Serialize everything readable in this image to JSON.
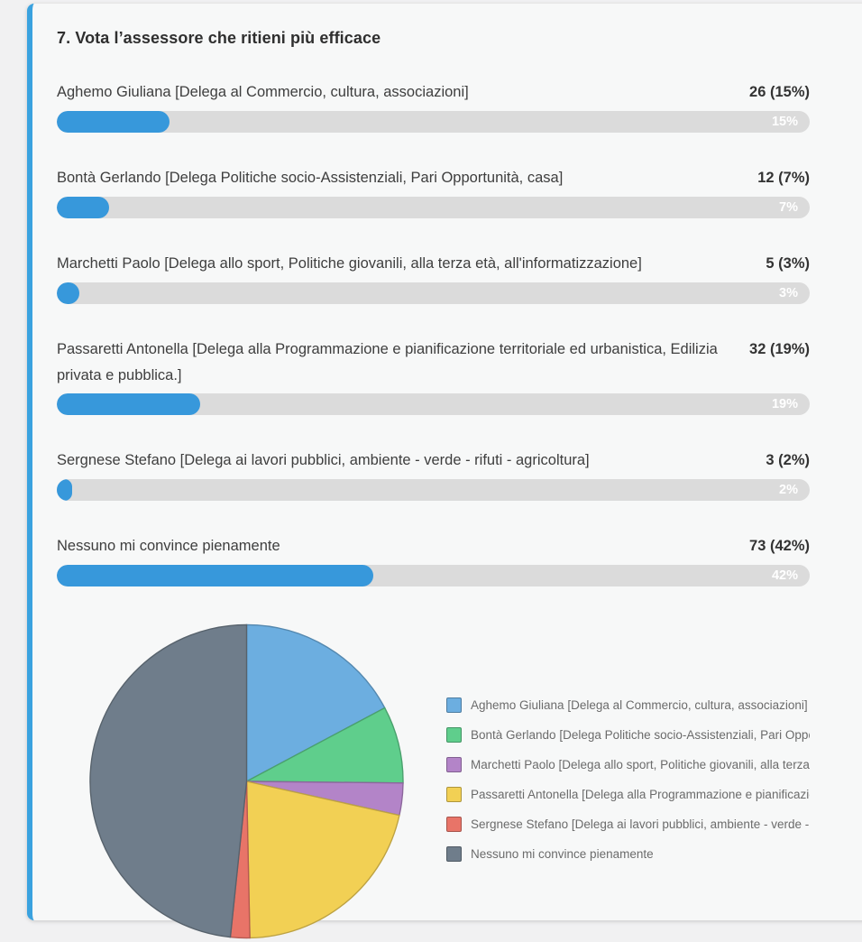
{
  "colors": {
    "accent_border": "#3aa2df",
    "bar_fill": "#3798db",
    "bar_track": "#dbdbdb",
    "card_bg": "#f7f8f8",
    "page_bg": "#f1f1f2"
  },
  "poll": {
    "title": "7. Vota l’assessore che ritieni più efficace",
    "options": [
      {
        "label": "Aghemo Giuliana [Delega al Commercio, cultura, associazioni]",
        "votes": 26,
        "votes_label": "26 (15%)",
        "percent": 15,
        "bar_percent_label": "15%"
      },
      {
        "label": "Bontà Gerlando [Delega Politiche socio-Assistenziali, Pari Opportunità, casa]",
        "votes": 12,
        "votes_label": "12 (7%)",
        "percent": 7,
        "bar_percent_label": "7%"
      },
      {
        "label": "Marchetti Paolo [Delega allo sport, Politiche giovanili, alla terza età, all'informatizzazione]",
        "votes": 5,
        "votes_label": "5 (3%)",
        "percent": 3,
        "bar_percent_label": "3%"
      },
      {
        "label": "Passaretti Antonella [Delega alla Programmazione e pianificazione territoriale ed urbanistica, Edilizia privata e pubblica.]",
        "votes": 32,
        "votes_label": "32 (19%)",
        "percent": 19,
        "bar_percent_label": "19%"
      },
      {
        "label": "Sergnese Stefano [Delega ai lavori pubblici, ambiente - verde - rifuti - agricoltura]",
        "votes": 3,
        "votes_label": "3 (2%)",
        "percent": 2,
        "bar_percent_label": "2%"
      },
      {
        "label": "Nessuno mi convince pienamente",
        "votes": 73,
        "votes_label": "73 (42%)",
        "percent": 42,
        "bar_percent_label": "42%"
      }
    ]
  },
  "chart_data": [
    {
      "type": "bar",
      "orientation": "horizontal",
      "categories": [
        "Aghemo Giuliana [Delega al Commercio, cultura, associazioni]",
        "Bontà Gerlando [Delega Politiche socio-Assistenziali, Pari Opportunità, casa]",
        "Marchetti Paolo [Delega allo sport, Politiche giovanili, alla terza età, all'informatizzazione]",
        "Passaretti Antonella [Delega alla Programmazione e pianificazione territoriale ed urbanistica, Edilizia privata e pubblica.]",
        "Sergnese Stefano [Delega ai lavori pubblici, ambiente - verde - rifuti - agricoltura]",
        "Nessuno mi convince pienamente"
      ],
      "values": [
        26,
        12,
        5,
        32,
        3,
        73
      ],
      "percents": [
        15,
        7,
        3,
        19,
        2,
        42
      ],
      "title": "7. Vota l’assessore che ritieni più efficace",
      "xlabel": "",
      "ylabel": "",
      "xlim": [
        0,
        100
      ],
      "grid": false,
      "bar_color": "#3798db"
    },
    {
      "type": "pie",
      "labels": [
        "Aghemo Giuliana  [Delega al Commercio, cultura, associazioni]",
        "Bontà Gerlando [Delega Politiche socio-Assistenziali, Pari Opportunità, casa]",
        "Marchetti Paolo [Delega allo sport, Politiche giovanili, alla terza età, all'informatizzazione]",
        "Passaretti Antonella [Delega alla Programmazione e pianificazione territoriale ed urbanistica, Edilizia privata e pubblica.]",
        "Sergnese Stefano [Delega ai lavori pubblici, ambiente - verde - rifuti - agricoltura]",
        "Nessuno mi convince pienamente"
      ],
      "values": [
        26,
        12,
        5,
        32,
        3,
        73
      ],
      "colors": [
        "#6caee0",
        "#5fce8c",
        "#b384c8",
        "#f2d054",
        "#e87468",
        "#6f7d8b"
      ],
      "start_angle": "top",
      "direction": "clockwise",
      "legend_position": "right"
    }
  ]
}
